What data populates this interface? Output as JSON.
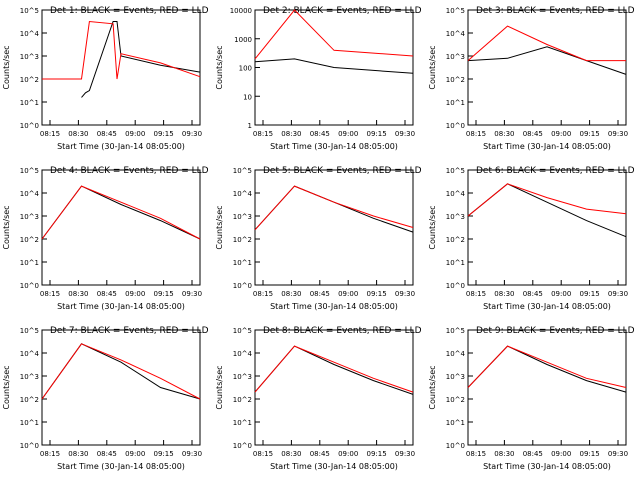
{
  "chart_data": [
    {
      "type": "line",
      "title": "Det 1: BLACK = Events, RED = LLD",
      "ylabel": "Counts/sec",
      "xlabel": "Start Time (30-Jan-14 08:05:00)",
      "yscale": "log",
      "ylim_exp": [
        0,
        5
      ],
      "ytick_labels": [
        "10^0",
        "10^1",
        "10^2",
        "10^3",
        "10^4",
        "10^5"
      ],
      "xtick_labels": [
        "08:15",
        "08:30",
        "08:45",
        "09:00",
        "09:15",
        "09:30"
      ],
      "series": [
        {
          "name": "Events",
          "color": "#000000",
          "points": [
            [
              0.5,
              1.2
            ],
            [
              0.55,
              1.4
            ],
            [
              0.6,
              1.5
            ],
            [
              0.9,
              4.5
            ],
            [
              0.95,
              4.5
            ],
            [
              1.0,
              3.0
            ],
            [
              1.5,
              2.6
            ],
            [
              2.0,
              2.3
            ]
          ]
        },
        {
          "name": "LLD",
          "color": "#ff0000",
          "points": [
            [
              0.0,
              2.0
            ],
            [
              0.5,
              2.0
            ],
            [
              0.6,
              4.5
            ],
            [
              0.9,
              4.4
            ],
            [
              0.95,
              2.0
            ],
            [
              1.0,
              3.1
            ],
            [
              1.5,
              2.7
            ],
            [
              2.0,
              2.1
            ]
          ]
        }
      ]
    },
    {
      "type": "line",
      "title": "Det 2: BLACK = Events, RED = LLD",
      "ylabel": "Counts/sec",
      "xlabel": "Start Time (30-Jan-14 08:05:00)",
      "yscale": "log",
      "ylim_exp": [
        0,
        4
      ],
      "ytick_labels": [
        "1",
        "10",
        "100",
        "1000",
        "10000"
      ],
      "xtick_labels": [
        "08:15",
        "08:30",
        "08:45",
        "09:00",
        "09:15",
        "09:30"
      ],
      "series": [
        {
          "name": "Events",
          "color": "#000000",
          "points": [
            [
              0.0,
              2.2
            ],
            [
              0.5,
              2.3
            ],
            [
              1.0,
              2.0
            ],
            [
              1.5,
              1.9
            ],
            [
              2.0,
              1.8
            ]
          ]
        },
        {
          "name": "LLD",
          "color": "#ff0000",
          "points": [
            [
              0.0,
              2.3
            ],
            [
              0.5,
              4.0
            ],
            [
              1.0,
              2.6
            ],
            [
              1.5,
              2.5
            ],
            [
              2.0,
              2.4
            ]
          ]
        }
      ]
    },
    {
      "type": "line",
      "title": "Det 3: BLACK = Events, RED = LLD",
      "ylabel": "Counts/sec",
      "xlabel": "Start Time (30-Jan-14 08:05:00)",
      "yscale": "log",
      "ylim_exp": [
        0,
        5
      ],
      "ytick_labels": [
        "10^0",
        "10^1",
        "10^2",
        "10^3",
        "10^4",
        "10^5"
      ],
      "xtick_labels": [
        "08:15",
        "08:30",
        "08:45",
        "09:00",
        "09:15",
        "09:30"
      ],
      "series": [
        {
          "name": "Events",
          "color": "#000000",
          "points": [
            [
              0.0,
              2.8
            ],
            [
              0.5,
              2.9
            ],
            [
              1.0,
              3.4
            ],
            [
              1.5,
              2.8
            ],
            [
              2.0,
              2.2
            ]
          ]
        },
        {
          "name": "LLD",
          "color": "#ff0000",
          "points": [
            [
              0.0,
              2.8
            ],
            [
              0.5,
              4.3
            ],
            [
              1.0,
              3.5
            ],
            [
              1.5,
              2.8
            ],
            [
              2.0,
              2.8
            ]
          ]
        }
      ]
    },
    {
      "type": "line",
      "title": "Det 4: BLACK = Events, RED = LLD",
      "ylabel": "Counts/sec",
      "xlabel": "Start Time (30-Jan-14 08:05:00)",
      "yscale": "log",
      "ylim_exp": [
        0,
        5
      ],
      "ytick_labels": [
        "10^0",
        "10^1",
        "10^2",
        "10^3",
        "10^4",
        "10^5"
      ],
      "xtick_labels": [
        "08:15",
        "08:30",
        "08:45",
        "09:00",
        "09:15",
        "09:30"
      ],
      "series": [
        {
          "name": "Events",
          "color": "#000000",
          "points": [
            [
              0.0,
              2.0
            ],
            [
              0.5,
              4.3
            ],
            [
              1.0,
              3.5
            ],
            [
              1.5,
              2.8
            ],
            [
              2.0,
              2.0
            ]
          ]
        },
        {
          "name": "LLD",
          "color": "#ff0000",
          "points": [
            [
              0.0,
              2.0
            ],
            [
              0.5,
              4.3
            ],
            [
              1.0,
              3.6
            ],
            [
              1.5,
              2.9
            ],
            [
              2.0,
              2.0
            ]
          ]
        }
      ]
    },
    {
      "type": "line",
      "title": "Det 5: BLACK = Events, RED = LLD",
      "ylabel": "Counts/sec",
      "xlabel": "Start Time (30-Jan-14 08:05:00)",
      "yscale": "log",
      "ylim_exp": [
        0,
        5
      ],
      "ytick_labels": [
        "10^0",
        "10^1",
        "10^2",
        "10^3",
        "10^4",
        "10^5"
      ],
      "xtick_labels": [
        "08:15",
        "08:30",
        "08:45",
        "09:00",
        "09:15",
        "09:30"
      ],
      "series": [
        {
          "name": "Events",
          "color": "#000000",
          "points": [
            [
              0.0,
              2.4
            ],
            [
              0.5,
              4.3
            ],
            [
              1.0,
              3.6
            ],
            [
              1.5,
              2.9
            ],
            [
              2.0,
              2.3
            ]
          ]
        },
        {
          "name": "LLD",
          "color": "#ff0000",
          "points": [
            [
              0.0,
              2.4
            ],
            [
              0.5,
              4.3
            ],
            [
              1.0,
              3.6
            ],
            [
              1.5,
              3.0
            ],
            [
              2.0,
              2.5
            ]
          ]
        }
      ]
    },
    {
      "type": "line",
      "title": "Det 6: BLACK = Events, RED = LLD",
      "ylabel": "Counts/sec",
      "xlabel": "Start Time (30-Jan-14 08:05:00)",
      "yscale": "log",
      "ylim_exp": [
        0,
        5
      ],
      "ytick_labels": [
        "10^0",
        "10^1",
        "10^2",
        "10^3",
        "10^4",
        "10^5"
      ],
      "xtick_labels": [
        "08:15",
        "08:30",
        "08:45",
        "09:00",
        "09:15",
        "09:30"
      ],
      "series": [
        {
          "name": "Events",
          "color": "#000000",
          "points": [
            [
              0.0,
              3.0
            ],
            [
              0.5,
              4.4
            ],
            [
              1.0,
              3.6
            ],
            [
              1.5,
              2.8
            ],
            [
              2.0,
              2.1
            ]
          ]
        },
        {
          "name": "LLD",
          "color": "#ff0000",
          "points": [
            [
              0.0,
              3.0
            ],
            [
              0.5,
              4.4
            ],
            [
              1.0,
              3.8
            ],
            [
              1.5,
              3.3
            ],
            [
              2.0,
              3.1
            ]
          ]
        }
      ]
    },
    {
      "type": "line",
      "title": "Det 7: BLACK = Events, RED = LLD",
      "ylabel": "Counts/sec",
      "xlabel": "Start Time (30-Jan-14 08:05:00)",
      "yscale": "log",
      "ylim_exp": [
        0,
        5
      ],
      "ytick_labels": [
        "10^0",
        "10^1",
        "10^2",
        "10^3",
        "10^4",
        "10^5"
      ],
      "xtick_labels": [
        "08:15",
        "08:30",
        "08:45",
        "09:00",
        "09:15",
        "09:30"
      ],
      "series": [
        {
          "name": "Events",
          "color": "#000000",
          "points": [
            [
              0.0,
              2.0
            ],
            [
              0.5,
              4.4
            ],
            [
              1.0,
              3.6
            ],
            [
              1.5,
              2.5
            ],
            [
              2.0,
              2.0
            ]
          ]
        },
        {
          "name": "LLD",
          "color": "#ff0000",
          "points": [
            [
              0.0,
              2.0
            ],
            [
              0.5,
              4.4
            ],
            [
              1.0,
              3.7
            ],
            [
              1.5,
              2.9
            ],
            [
              2.0,
              2.0
            ]
          ]
        }
      ]
    },
    {
      "type": "line",
      "title": "Det 8: BLACK = Events, RED = LLD",
      "ylabel": "Counts/sec",
      "xlabel": "Start Time (30-Jan-14 08:05:00)",
      "yscale": "log",
      "ylim_exp": [
        0,
        5
      ],
      "ytick_labels": [
        "10^0",
        "10^1",
        "10^2",
        "10^3",
        "10^4",
        "10^5"
      ],
      "xtick_labels": [
        "08:15",
        "08:30",
        "08:45",
        "09:00",
        "09:15",
        "09:30"
      ],
      "series": [
        {
          "name": "Events",
          "color": "#000000",
          "points": [
            [
              0.0,
              2.3
            ],
            [
              0.5,
              4.3
            ],
            [
              1.0,
              3.5
            ],
            [
              1.5,
              2.8
            ],
            [
              2.0,
              2.2
            ]
          ]
        },
        {
          "name": "LLD",
          "color": "#ff0000",
          "points": [
            [
              0.0,
              2.3
            ],
            [
              0.5,
              4.3
            ],
            [
              1.0,
              3.6
            ],
            [
              1.5,
              2.9
            ],
            [
              2.0,
              2.3
            ]
          ]
        }
      ]
    },
    {
      "type": "line",
      "title": "Det 9: BLACK = Events, RED = LLD",
      "ylabel": "Counts/sec",
      "xlabel": "Start Time (30-Jan-14 08:05:00)",
      "yscale": "log",
      "ylim_exp": [
        0,
        5
      ],
      "ytick_labels": [
        "10^0",
        "10^1",
        "10^2",
        "10^3",
        "10^4",
        "10^5"
      ],
      "xtick_labels": [
        "08:15",
        "08:30",
        "08:45",
        "09:00",
        "09:15",
        "09:30"
      ],
      "series": [
        {
          "name": "Events",
          "color": "#000000",
          "points": [
            [
              0.0,
              2.5
            ],
            [
              0.5,
              4.3
            ],
            [
              1.0,
              3.5
            ],
            [
              1.5,
              2.8
            ],
            [
              2.0,
              2.3
            ]
          ]
        },
        {
          "name": "LLD",
          "color": "#ff0000",
          "points": [
            [
              0.0,
              2.5
            ],
            [
              0.5,
              4.3
            ],
            [
              1.0,
              3.6
            ],
            [
              1.5,
              2.9
            ],
            [
              2.0,
              2.5
            ]
          ]
        }
      ]
    }
  ]
}
